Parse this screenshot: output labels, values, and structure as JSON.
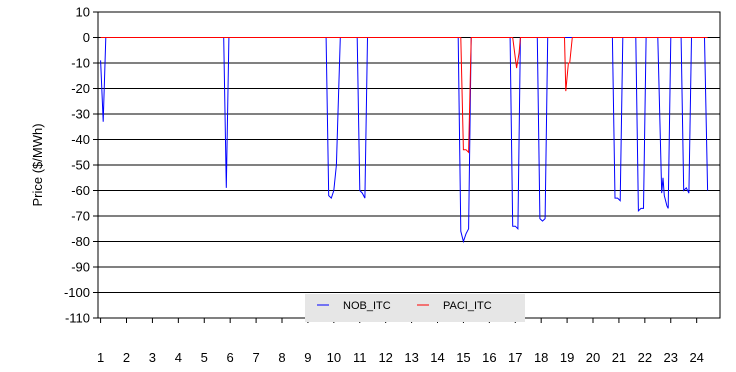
{
  "chart_data": {
    "type": "line",
    "title": "",
    "xlabel": "",
    "ylabel": "Price ($/MWh)",
    "ylim": [
      -110,
      10
    ],
    "yticks": [
      10,
      0,
      -10,
      -20,
      -30,
      -40,
      -50,
      -60,
      -70,
      -80,
      -90,
      -100,
      -110
    ],
    "xlim": [
      0.9,
      24.9
    ],
    "xticks": [
      1,
      2,
      3,
      4,
      5,
      6,
      7,
      8,
      9,
      10,
      11,
      12,
      13,
      14,
      15,
      16,
      17,
      18,
      19,
      20,
      21,
      22,
      23,
      24
    ],
    "grid": "horizontal",
    "legend_position": "bottom-center",
    "series": [
      {
        "name": "NOB_ITC",
        "color": "#0000ff",
        "points": [
          [
            1.0,
            -9
          ],
          [
            1.1,
            -33
          ],
          [
            1.2,
            0
          ],
          [
            5.75,
            0
          ],
          [
            5.85,
            -59
          ],
          [
            5.95,
            0
          ],
          [
            9.7,
            0
          ],
          [
            9.8,
            -62
          ],
          [
            9.9,
            -63
          ],
          [
            10.0,
            -60
          ],
          [
            10.1,
            -50
          ],
          [
            10.25,
            0
          ],
          [
            10.9,
            0
          ],
          [
            11.0,
            -60
          ],
          [
            11.1,
            -61
          ],
          [
            11.2,
            -63
          ],
          [
            11.3,
            0
          ],
          [
            14.8,
            0
          ],
          [
            14.9,
            -76
          ],
          [
            15.0,
            -80
          ],
          [
            15.1,
            -77
          ],
          [
            15.2,
            -75
          ],
          [
            15.3,
            0
          ],
          [
            16.8,
            0
          ],
          [
            16.9,
            -74
          ],
          [
            17.0,
            -74
          ],
          [
            17.1,
            -75
          ],
          [
            17.2,
            0
          ],
          [
            17.85,
            0
          ],
          [
            17.95,
            -71
          ],
          [
            18.05,
            -72
          ],
          [
            18.15,
            -71
          ],
          [
            18.25,
            0
          ],
          [
            20.75,
            0
          ],
          [
            20.85,
            -63
          ],
          [
            20.95,
            -63
          ],
          [
            21.05,
            -64
          ],
          [
            21.15,
            0
          ],
          [
            21.65,
            0
          ],
          [
            21.75,
            -68
          ],
          [
            21.85,
            -67
          ],
          [
            21.95,
            -67
          ],
          [
            22.05,
            0
          ],
          [
            22.5,
            0
          ],
          [
            22.65,
            -61
          ],
          [
            22.7,
            -55
          ],
          [
            22.75,
            -62
          ],
          [
            22.85,
            -66
          ],
          [
            22.9,
            -67
          ],
          [
            23.0,
            0
          ],
          [
            23.4,
            0
          ],
          [
            23.5,
            -60
          ],
          [
            23.6,
            -59
          ],
          [
            23.7,
            -61
          ],
          [
            23.8,
            0
          ],
          [
            24.3,
            0
          ],
          [
            24.42,
            -60
          ]
        ]
      },
      {
        "name": "PACI_ITC",
        "color": "#ff0000",
        "points": [
          [
            1.0,
            0
          ],
          [
            14.9,
            0
          ],
          [
            15.0,
            -44
          ],
          [
            15.1,
            -44
          ],
          [
            15.2,
            -45
          ],
          [
            15.3,
            0
          ],
          [
            16.9,
            0
          ],
          [
            17.0,
            -8
          ],
          [
            17.05,
            -12
          ],
          [
            17.15,
            -6
          ],
          [
            17.2,
            0
          ],
          [
            18.9,
            0
          ],
          [
            18.95,
            -21
          ],
          [
            19.05,
            -10
          ],
          [
            19.1,
            -10
          ],
          [
            19.2,
            0
          ],
          [
            24.42,
            0
          ]
        ]
      }
    ]
  }
}
